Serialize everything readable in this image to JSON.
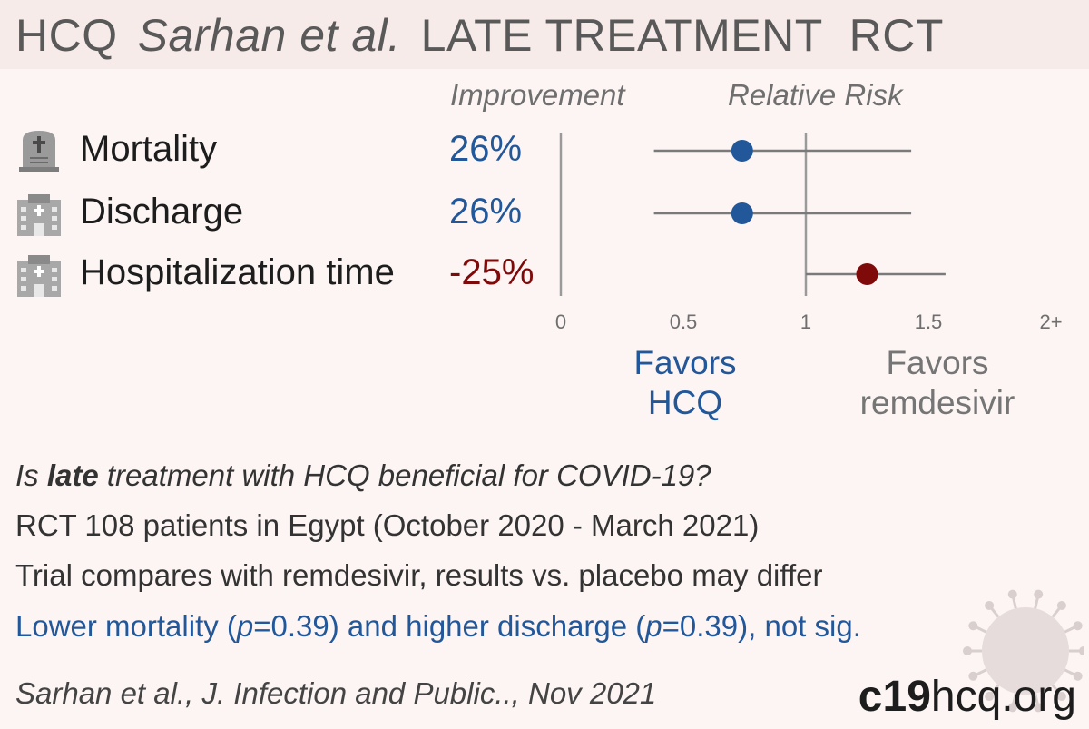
{
  "header": {
    "drug": "HCQ",
    "authors": "Sarhan et al.",
    "treatment": "LATE TREATMENT",
    "design": "RCT"
  },
  "columns": {
    "improvement": "Improvement",
    "relative_risk": "Relative Risk"
  },
  "outcomes": [
    {
      "label": "Mortality",
      "improvement": "26%",
      "icon": "tombstone-icon"
    },
    {
      "label": "Discharge",
      "improvement": "26%",
      "icon": "hospital-icon"
    },
    {
      "label": "Hospitalization time",
      "improvement": "-25%",
      "icon": "hospital-icon"
    }
  ],
  "chart_data": {
    "type": "scatter",
    "subtype": "forest-plot",
    "x_axis": {
      "range": [
        0,
        2
      ],
      "ticks": [
        "0",
        "0.5",
        "1",
        "1.5",
        "2+"
      ],
      "tick_values": [
        0,
        0.5,
        1,
        1.5,
        2
      ]
    },
    "series": [
      {
        "label": "Mortality",
        "rr": 0.74,
        "ci": [
          0.38,
          1.43
        ],
        "color": "#22579a"
      },
      {
        "label": "Discharge",
        "rr": 0.74,
        "ci": [
          0.38,
          1.43
        ],
        "color": "#22579a"
      },
      {
        "label": "Hospitalization time",
        "rr": 1.25,
        "ci": [
          1.0,
          1.57
        ],
        "color": "#7e0a0a"
      }
    ],
    "reference_line": 1
  },
  "favors": {
    "left": [
      "Favors",
      "HCQ"
    ],
    "right": [
      "Favors",
      "remdesivir"
    ]
  },
  "summary": {
    "q_pre": "Is ",
    "q_bold": "late",
    "q_post": " treatment with HCQ beneficial for COVID-19?",
    "line2": "RCT 108 patients in Egypt (October 2020 - March 2021)",
    "line3": "Trial compares with remdesivir, results vs. placebo may differ",
    "line4_a": "Lower mortality (",
    "line4_p1": "p",
    "line4_b": "=0.39) and higher discharge (",
    "line4_p2": "p",
    "line4_c": "=0.39), not sig."
  },
  "citation": "Sarhan et al., J. Infection and Public.., Nov 2021",
  "brand": {
    "bold": "c19",
    "rest": "hcq.org"
  },
  "colors": {
    "blue": "#22579a",
    "red": "#7e0a0a",
    "gray": "#757575"
  }
}
